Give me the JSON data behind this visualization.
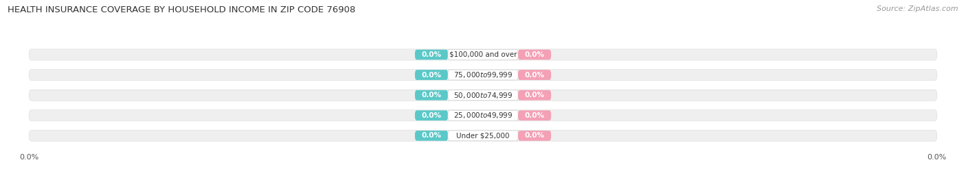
{
  "title": "HEALTH INSURANCE COVERAGE BY HOUSEHOLD INCOME IN ZIP CODE 76908",
  "source": "Source: ZipAtlas.com",
  "categories": [
    "Under $25,000",
    "$25,000 to $49,999",
    "$50,000 to $74,999",
    "$75,000 to $99,999",
    "$100,000 and over"
  ],
  "with_coverage": [
    0.0,
    0.0,
    0.0,
    0.0,
    0.0
  ],
  "without_coverage": [
    0.0,
    0.0,
    0.0,
    0.0,
    0.0
  ],
  "with_color": "#5bc8c8",
  "without_color": "#f4a0b5",
  "bar_bg_color": "#e0e0e0",
  "title_fontsize": 9.5,
  "source_fontsize": 8,
  "label_fontsize": 7.5,
  "tick_fontsize": 8,
  "background_color": "#ffffff"
}
